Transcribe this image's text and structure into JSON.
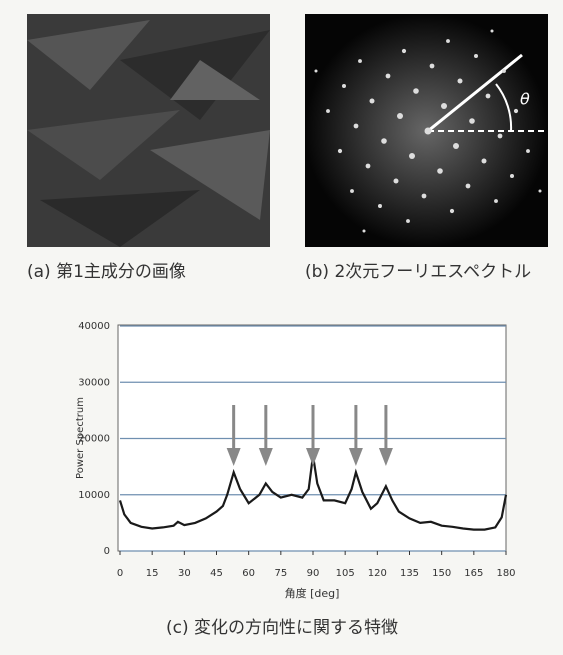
{
  "panels": [
    {
      "caption": "(a) 第1主成分の画像"
    },
    {
      "caption": "(b) 2次元フーリエスペクトル",
      "symbol": "θ"
    }
  ],
  "chart_data": {
    "type": "line",
    "caption": "(c) 変化の方向性に関する特徴",
    "x_label": "角度 [deg]",
    "y_label": "Power Spectrum",
    "x": [
      0,
      2,
      5,
      10,
      15,
      20,
      25,
      27,
      30,
      35,
      40,
      45,
      48,
      50,
      53,
      56,
      60,
      65,
      68,
      71,
      75,
      80,
      85,
      88,
      90,
      92,
      95,
      100,
      105,
      108,
      110,
      113,
      117,
      120,
      124,
      127,
      130,
      135,
      140,
      145,
      150,
      155,
      160,
      165,
      170,
      175,
      178,
      180
    ],
    "series": [
      {
        "color": "#1a1a1a",
        "values": [
          9000,
          6500,
          5000,
          4300,
          4000,
          4200,
          4500,
          5200,
          4600,
          5000,
          5800,
          7000,
          8000,
          10000,
          14000,
          11000,
          8500,
          10000,
          12000,
          10500,
          9500,
          10000,
          9500,
          11000,
          17000,
          12000,
          9000,
          9000,
          8500,
          11000,
          14000,
          10500,
          7500,
          8500,
          11500,
          9000,
          7000,
          5800,
          5000,
          5200,
          4500,
          4300,
          4000,
          3800,
          3800,
          4200,
          6000,
          10000
        ]
      }
    ],
    "arrows_x": [
      53,
      68,
      90,
      110,
      124
    ],
    "xlim": [
      0,
      180
    ],
    "xticks": [
      0,
      15,
      30,
      45,
      60,
      75,
      90,
      105,
      120,
      135,
      150,
      165,
      180
    ],
    "ylim": [
      0,
      40000
    ],
    "yticks": [
      0,
      10000,
      20000,
      30000,
      40000
    ],
    "grid": true
  }
}
